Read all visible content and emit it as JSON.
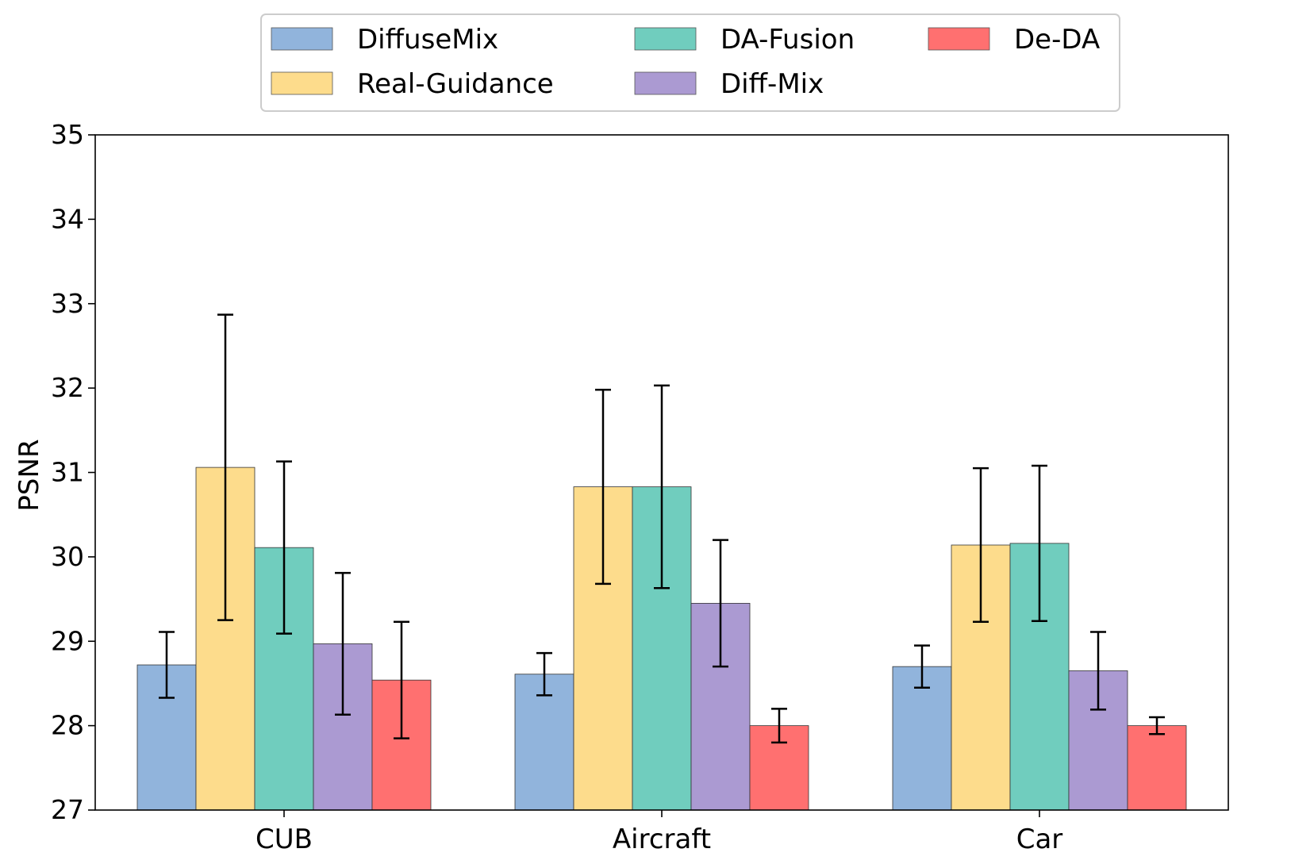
{
  "chart_data": {
    "type": "bar",
    "title": "",
    "xlabel": "",
    "ylabel": "PSNR",
    "ylim": [
      27,
      35
    ],
    "yticks": [
      27,
      28,
      29,
      30,
      31,
      32,
      33,
      34,
      35
    ],
    "grid": false,
    "legend_position": "top-center",
    "categories": [
      "CUB",
      "Aircraft",
      "Car"
    ],
    "series": [
      {
        "name": "DiffuseMix",
        "color": "#91B4DC",
        "values": [
          28.72,
          28.61,
          28.7
        ],
        "errors": [
          0.39,
          0.25,
          0.25
        ]
      },
      {
        "name": "Real-Guidance",
        "color": "#FDDC8C",
        "values": [
          31.06,
          30.83,
          30.14
        ],
        "errors": [
          1.81,
          1.15,
          0.91
        ]
      },
      {
        "name": "DA-Fusion",
        "color": "#70CDBE",
        "values": [
          30.11,
          30.83,
          30.16
        ],
        "errors": [
          1.02,
          1.2,
          0.92
        ]
      },
      {
        "name": "Diff-Mix",
        "color": "#AB9AD2",
        "values": [
          28.97,
          29.45,
          28.65
        ],
        "errors": [
          0.84,
          0.75,
          0.46
        ]
      },
      {
        "name": "De-DA",
        "color": "#FF7070",
        "values": [
          28.54,
          28.0,
          28.0
        ],
        "errors": [
          0.69,
          0.2,
          0.1
        ]
      }
    ]
  }
}
